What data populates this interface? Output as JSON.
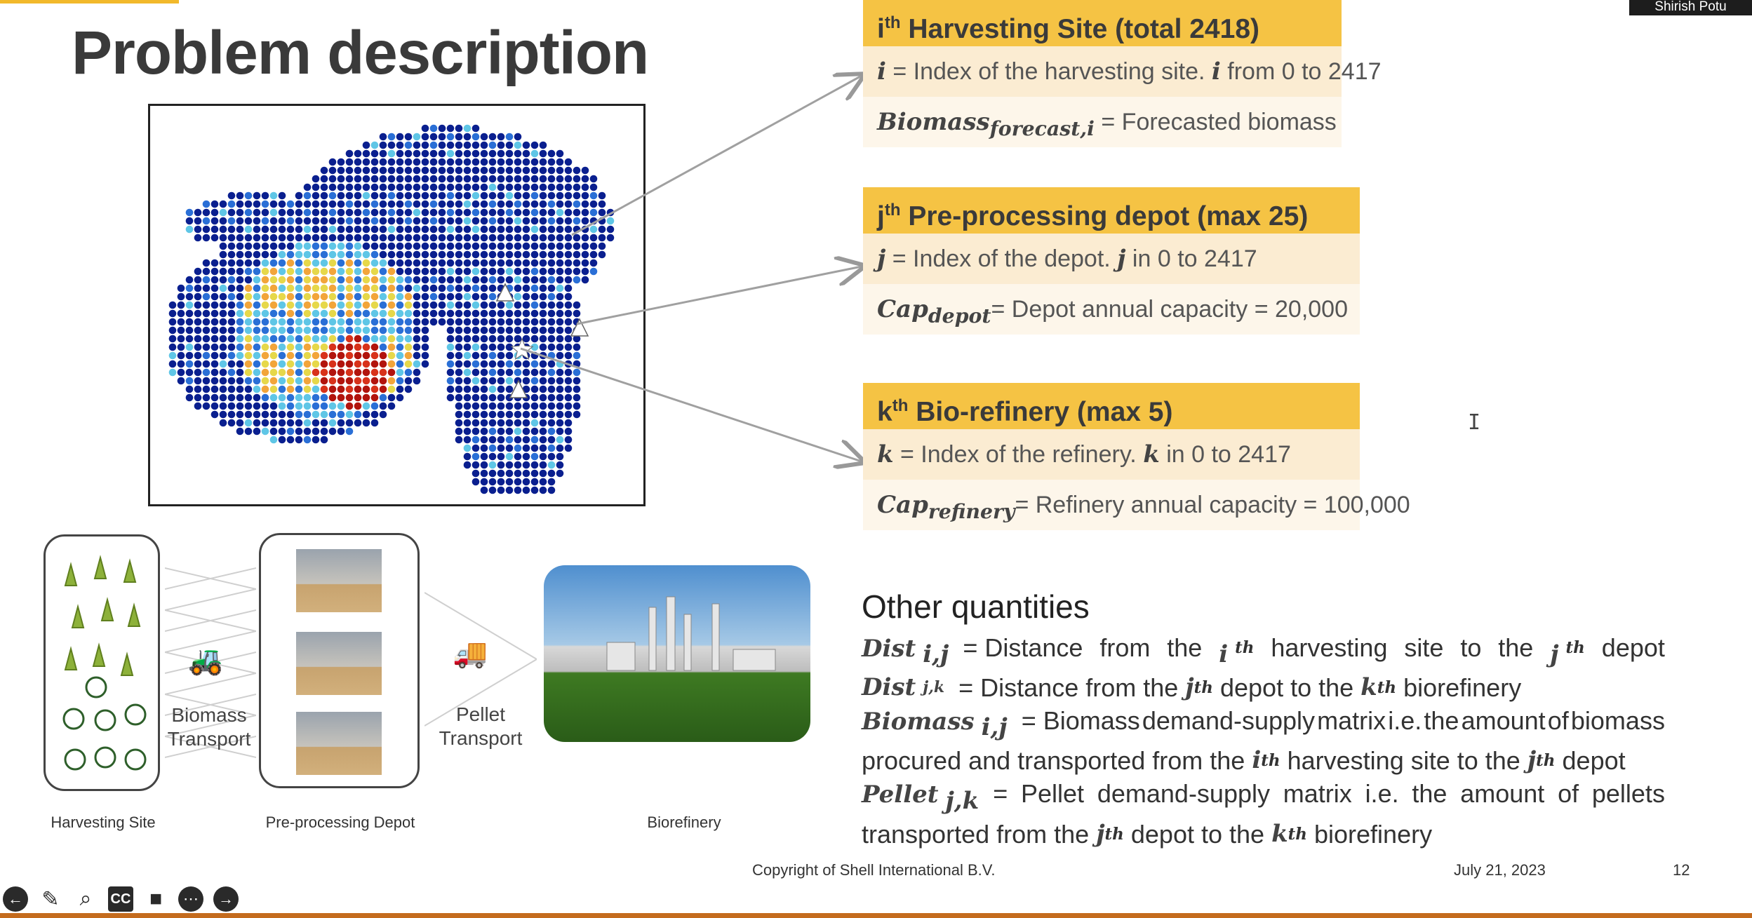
{
  "presenter": "Shirish Potu",
  "title": "Problem description",
  "boxes": {
    "harvest": {
      "hdr_pre": "i",
      "hdr_sup": "th",
      "hdr_text": " Harvesting Site (total 2418)",
      "r1_var": "i",
      "r1_text": " = Index of the harvesting site. ",
      "r1_var2": "i",
      "r1_text2": " from 0 to 2417",
      "r2_var": "Biomass",
      "r2_sub": "forecast,i",
      "r2_text": " = Forecasted biomass"
    },
    "depot": {
      "hdr_pre": "j",
      "hdr_sup": "th",
      "hdr_text": " Pre-processing depot (max 25)",
      "r1_var": "j",
      "r1_text": " = Index of the depot. ",
      "r1_var2": "j",
      "r1_text2": " in 0 to 2417",
      "r2_var": "Cap",
      "r2_sub": "depot",
      "r2_text": "= Depot annual capacity = 20,000"
    },
    "refinery": {
      "hdr_pre": "k",
      "hdr_sup": "th",
      "hdr_text": " Bio-refinery (max 5)",
      "r1_var": "k",
      "r1_text": " = Index of the refinery. ",
      "r1_var2": "k",
      "r1_text2": " in 0 to 2417",
      "r2_var": "Cap",
      "r2_sub": "refinery",
      "r2_text": "= Refinery annual capacity = 100,000"
    }
  },
  "other": {
    "title": "Other quantities",
    "l1": {
      "var": "Dist",
      "sub": "i,j",
      "words": [
        "= Distance",
        "from",
        "the"
      ],
      "i": "i",
      "isup": "th",
      "words2": [
        "harvesting",
        "site",
        "to",
        "the"
      ],
      "j": "j",
      "jsup": "th",
      "end": "depot"
    },
    "l2": {
      "var": "Dist",
      "sub": "j,k",
      "t1": "= Distance from the ",
      "j": "j",
      "jsup": "th",
      "t2": " depot to the ",
      "k": "k",
      "ksup": "th",
      "t3": " biorefinery"
    },
    "l3": {
      "var": "Biomass",
      "sub": "i,j",
      "words": [
        "= Biomass",
        "demand-supply",
        "matrix",
        "i.e.",
        "the",
        "amount",
        "of",
        "biomass"
      ]
    },
    "l4": {
      "t1": "procured and transported from the ",
      "i": "i",
      "isup": "th",
      "t2": " harvesting site to the ",
      "j": "j",
      "jsup": "th",
      "t3": " depot"
    },
    "l5": {
      "var": "Pellet",
      "sub": "j,k",
      "words": [
        "=",
        "Pellet",
        "demand-supply",
        "matrix",
        "i.e.",
        "the",
        "amount",
        "of",
        "pellets"
      ]
    },
    "l6": {
      "t1": "transported from the ",
      "j": "j",
      "jsup": "th",
      "t2": " depot to the ",
      "k": "k",
      "ksup": "th",
      "t3": " biorefinery"
    }
  },
  "diagram": {
    "biomass_transport": [
      "Biomass",
      "Transport"
    ],
    "pellet_transport": [
      "Pellet",
      "Transport"
    ],
    "captions": {
      "harvest": "Harvesting Site",
      "depot": "Pre-processing Depot",
      "refinery": "Biorefinery"
    }
  },
  "footer": {
    "copyright": "Copyright of Shell International B.V.",
    "date": "July 21, 2023",
    "page": "12"
  },
  "toolbar_icons": [
    "back-arrow-icon",
    "pen-icon",
    "zoom-icon",
    "captions-icon",
    "camera-icon",
    "more-icon",
    "forward-arrow-icon"
  ],
  "colors": {
    "accent": "#f5c344",
    "row1": "#fbecd2",
    "row2": "#fdf6ea",
    "map_low": "#0a1f8f",
    "map_high": "#b2140d"
  }
}
